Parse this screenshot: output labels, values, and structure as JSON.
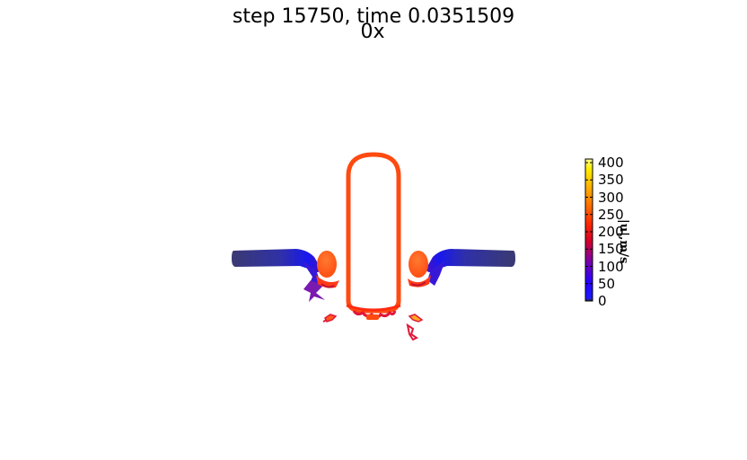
{
  "figure": {
    "title": "step 15750, time 0.0351509",
    "subtitle": "0x"
  },
  "colorbar": {
    "label": "|u|,m/s",
    "ticks": [
      "400",
      "350",
      "300",
      "250",
      "200",
      "150",
      "100",
      "50",
      "0"
    ],
    "colors": [
      "#2a2a2a",
      "#0000ff",
      "#7a00a8",
      "#d4002a",
      "#ff3a00",
      "#ff6a00",
      "#ffb000",
      "#ffff40"
    ]
  },
  "colors": {
    "tube": "#ff4a10",
    "tube_inner": "#ffffff",
    "arm_start": "#3b3b7a",
    "arm_end": "#2020ff",
    "bulb": "#ff5a18",
    "splash": "#e0183a",
    "burst": "#7a1ab0"
  }
}
